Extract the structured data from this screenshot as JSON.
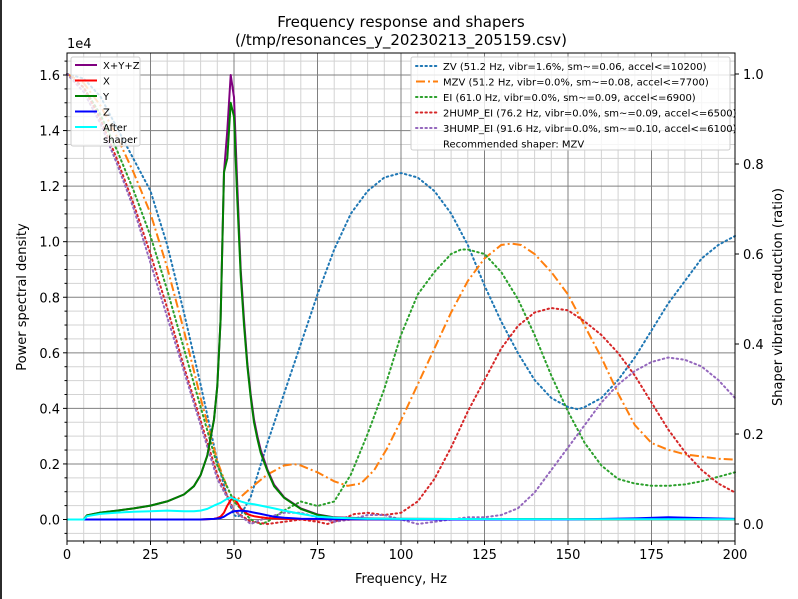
{
  "chart_data": {
    "type": "line",
    "title": "Frequency response and shapers",
    "subtitle": "(/tmp/resonances_y_20230213_205159.csv)",
    "xlabel": "Frequency, Hz",
    "ylabel": "Power spectral density",
    "y_offset_label": "1e4",
    "y2label": "Shaper vibration reduction (ratio)",
    "xlim": [
      0,
      200
    ],
    "ylim": [
      -0.08,
      1.68
    ],
    "y2lim": [
      -0.053,
      1.05
    ],
    "grid": true,
    "x_ticks": [
      0,
      25,
      50,
      75,
      100,
      125,
      150,
      175,
      200
    ],
    "x_tick_labels": [
      "0",
      "25",
      "50",
      "75",
      "100",
      "125",
      "150",
      "175",
      "200"
    ],
    "y_ticks": [
      0.0,
      0.2,
      0.4,
      0.6,
      0.8,
      1.0,
      1.2,
      1.4,
      1.6
    ],
    "y_tick_labels": [
      "0.0",
      "0.2",
      "0.4",
      "0.6",
      "0.8",
      "1.0",
      "1.2",
      "1.4",
      "1.6"
    ],
    "y2_ticks": [
      0.0,
      0.2,
      0.4,
      0.6,
      0.8,
      1.0
    ],
    "y2_tick_labels": [
      "0.0",
      "0.2",
      "0.4",
      "0.6",
      "0.8",
      "1.0"
    ],
    "legend_left": {
      "placement": "top-left",
      "entries": [
        "X+Y+Z",
        "X",
        "Y",
        "Z",
        "After\nshaper"
      ]
    },
    "legend_right": {
      "placement": "top-right",
      "entries": [
        "ZV (51.2 Hz, vibr=1.6%, sm~=0.06, accel<=10200)",
        "MZV (51.2 Hz, vibr=0.0%, sm~=0.08, accel<=7700)",
        "EI (61.0 Hz, vibr=0.0%, sm~=0.09, accel<=6900)",
        "2HUMP_EI (76.2 Hz, vibr=0.0%, sm~=0.09, accel<=6500)",
        "3HUMP_EI (91.6 Hz, vibr=0.0%, sm~=0.10, accel<=6100)"
      ],
      "note": "Recommended shaper: MZV"
    },
    "psd_series": [
      {
        "name": "X+Y+Z",
        "color": "#800080",
        "x": [
          0,
          5,
          6,
          10,
          15,
          20,
          25,
          30,
          35,
          38,
          40,
          42,
          44,
          45,
          46,
          47,
          48,
          49,
          50,
          51,
          52,
          53,
          54,
          55,
          56,
          57,
          58,
          60,
          62,
          65,
          70,
          75,
          80,
          90,
          100,
          150,
          200
        ],
        "y": [
          0,
          0,
          0.015,
          0.025,
          0.032,
          0.04,
          0.05,
          0.065,
          0.09,
          0.12,
          0.16,
          0.23,
          0.36,
          0.48,
          0.72,
          1.25,
          1.4,
          1.6,
          1.52,
          1.2,
          0.9,
          0.72,
          0.56,
          0.45,
          0.36,
          0.3,
          0.25,
          0.18,
          0.125,
          0.08,
          0.04,
          0.018,
          0.008,
          0.004,
          0.002,
          0.001,
          0.001
        ]
      },
      {
        "name": "X",
        "color": "#ff0000",
        "x": [
          0,
          40,
          44,
          45,
          46,
          47,
          48,
          49,
          50,
          51,
          52,
          53,
          54,
          55,
          56,
          58,
          60,
          65,
          70,
          80,
          100,
          150,
          200
        ],
        "y": [
          0,
          0,
          0.002,
          0.005,
          0.01,
          0.025,
          0.05,
          0.07,
          0.08,
          0.06,
          0.04,
          0.03,
          0.02,
          0.015,
          0.012,
          0.008,
          0.005,
          0.002,
          0.001,
          0,
          0,
          0,
          0
        ]
      },
      {
        "name": "Y",
        "color": "#008000",
        "x": [
          0,
          5,
          6,
          10,
          15,
          20,
          25,
          30,
          35,
          38,
          40,
          42,
          44,
          45,
          46,
          47,
          48,
          49,
          50,
          51,
          52,
          53,
          54,
          55,
          56,
          57,
          58,
          60,
          62,
          65,
          70,
          75,
          80,
          90,
          100,
          150,
          200
        ],
        "y": [
          0,
          0,
          0.015,
          0.025,
          0.032,
          0.04,
          0.05,
          0.065,
          0.09,
          0.12,
          0.16,
          0.23,
          0.36,
          0.48,
          0.72,
          1.25,
          1.3,
          1.5,
          1.45,
          1.15,
          0.88,
          0.7,
          0.55,
          0.44,
          0.35,
          0.29,
          0.24,
          0.175,
          0.12,
          0.078,
          0.038,
          0.017,
          0.007,
          0.003,
          0.002,
          0.001,
          0.001
        ]
      },
      {
        "name": "Z",
        "color": "#0000ff",
        "x": [
          0,
          40,
          44,
          46,
          47,
          48,
          49,
          50,
          52,
          54,
          56,
          58,
          60,
          62,
          65,
          70,
          75,
          80,
          100,
          150,
          170,
          180,
          190,
          200
        ],
        "y": [
          0,
          0,
          0.002,
          0.005,
          0.01,
          0.018,
          0.025,
          0.03,
          0.032,
          0.03,
          0.025,
          0.02,
          0.015,
          0.01,
          0.006,
          0.003,
          0.002,
          0.001,
          0,
          0,
          0.004,
          0.008,
          0.005,
          0.002
        ]
      },
      {
        "name": "After\nshaper",
        "color": "#00ffff",
        "x": [
          0,
          5,
          6,
          10,
          15,
          20,
          25,
          30,
          35,
          38,
          40,
          42,
          44,
          46,
          48,
          49,
          50,
          51,
          52,
          54,
          56,
          58,
          60,
          62,
          65,
          70,
          75,
          80,
          90,
          100,
          150,
          200
        ],
        "y": [
          0,
          0,
          0.012,
          0.02,
          0.025,
          0.028,
          0.03,
          0.032,
          0.03,
          0.03,
          0.032,
          0.038,
          0.05,
          0.06,
          0.075,
          0.08,
          0.075,
          0.07,
          0.065,
          0.058,
          0.055,
          0.05,
          0.045,
          0.04,
          0.032,
          0.02,
          0.01,
          0.006,
          0.003,
          0.002,
          0.001,
          0.001
        ]
      }
    ],
    "shaper_series": [
      {
        "name": "ZV",
        "color": "#1f77b4",
        "dash": "dotted",
        "x": [
          0,
          5,
          10,
          15,
          20,
          25,
          30,
          35,
          40,
          45,
          48,
          50,
          51,
          52,
          55,
          60,
          65,
          70,
          75,
          80,
          85,
          90,
          95,
          100,
          105,
          110,
          115,
          120,
          125,
          130,
          135,
          140,
          145,
          150,
          153,
          155,
          160,
          165,
          170,
          175,
          180,
          185,
          190,
          195,
          200
        ],
        "y": [
          1.0,
          0.99,
          0.95,
          0.88,
          0.81,
          0.74,
          0.62,
          0.47,
          0.31,
          0.14,
          0.06,
          0.02,
          0.016,
          0.02,
          0.06,
          0.18,
          0.29,
          0.4,
          0.51,
          0.61,
          0.69,
          0.74,
          0.77,
          0.78,
          0.77,
          0.74,
          0.69,
          0.62,
          0.53,
          0.45,
          0.38,
          0.32,
          0.28,
          0.26,
          0.255,
          0.26,
          0.28,
          0.32,
          0.37,
          0.43,
          0.49,
          0.54,
          0.59,
          0.62,
          0.64
        ]
      },
      {
        "name": "MZV",
        "color": "#ff7f0e",
        "dash": "dashdot",
        "x": [
          0,
          5,
          10,
          15,
          20,
          25,
          30,
          35,
          40,
          45,
          48,
          50,
          52,
          55,
          60,
          65,
          68,
          70,
          75,
          80,
          84,
          88,
          92,
          96,
          100,
          105,
          110,
          115,
          120,
          125,
          130,
          133,
          136,
          140,
          145,
          150,
          155,
          160,
          165,
          170,
          175,
          180,
          185,
          190,
          195,
          200
        ],
        "y": [
          1.0,
          0.98,
          0.93,
          0.86,
          0.78,
          0.69,
          0.57,
          0.43,
          0.28,
          0.14,
          0.08,
          0.05,
          0.06,
          0.08,
          0.11,
          0.13,
          0.133,
          0.13,
          0.115,
          0.095,
          0.085,
          0.09,
          0.12,
          0.17,
          0.23,
          0.31,
          0.39,
          0.47,
          0.54,
          0.59,
          0.62,
          0.623,
          0.62,
          0.6,
          0.56,
          0.51,
          0.44,
          0.37,
          0.29,
          0.22,
          0.18,
          0.165,
          0.155,
          0.15,
          0.145,
          0.143
        ]
      },
      {
        "name": "EI",
        "color": "#2ca02c",
        "dash": "dotted",
        "x": [
          0,
          5,
          10,
          15,
          20,
          25,
          30,
          35,
          40,
          45,
          50,
          55,
          58,
          60,
          62,
          65,
          70,
          75,
          80,
          85,
          90,
          95,
          100,
          105,
          110,
          115,
          118,
          120,
          125,
          130,
          135,
          140,
          145,
          150,
          155,
          160,
          165,
          170,
          175,
          180,
          185,
          190,
          195,
          200
        ],
        "y": [
          1.0,
          0.97,
          0.91,
          0.83,
          0.74,
          0.64,
          0.52,
          0.39,
          0.26,
          0.13,
          0.05,
          0.01,
          0.0,
          0.005,
          0.015,
          0.03,
          0.05,
          0.04,
          0.05,
          0.11,
          0.2,
          0.3,
          0.42,
          0.51,
          0.56,
          0.6,
          0.61,
          0.61,
          0.6,
          0.56,
          0.5,
          0.42,
          0.33,
          0.25,
          0.18,
          0.13,
          0.1,
          0.09,
          0.085,
          0.085,
          0.088,
          0.095,
          0.105,
          0.115
        ]
      },
      {
        "name": "2HUMP_EI",
        "color": "#d62728",
        "dash": "dotted",
        "x": [
          0,
          5,
          10,
          15,
          20,
          25,
          30,
          35,
          40,
          45,
          50,
          55,
          60,
          65,
          70,
          75,
          78,
          82,
          86,
          90,
          95,
          100,
          105,
          110,
          115,
          120,
          125,
          130,
          135,
          140,
          145,
          150,
          155,
          160,
          165,
          170,
          175,
          180,
          185,
          190,
          195,
          200
        ],
        "y": [
          1.0,
          0.97,
          0.9,
          0.81,
          0.71,
          0.6,
          0.48,
          0.35,
          0.23,
          0.11,
          0.03,
          0.005,
          0.0,
          0.005,
          0.01,
          0.005,
          0.0,
          0.01,
          0.022,
          0.025,
          0.02,
          0.025,
          0.05,
          0.1,
          0.17,
          0.25,
          0.32,
          0.39,
          0.44,
          0.47,
          0.48,
          0.475,
          0.45,
          0.42,
          0.38,
          0.33,
          0.27,
          0.21,
          0.16,
          0.12,
          0.09,
          0.07
        ]
      },
      {
        "name": "3HUMP_EI",
        "color": "#9467bd",
        "dash": "dotted",
        "x": [
          0,
          5,
          10,
          15,
          20,
          25,
          30,
          35,
          40,
          45,
          50,
          55,
          60,
          65,
          70,
          75,
          80,
          85,
          90,
          95,
          100,
          105,
          110,
          115,
          120,
          125,
          130,
          135,
          140,
          145,
          150,
          155,
          160,
          165,
          170,
          175,
          180,
          185,
          190,
          195,
          200
        ],
        "y": [
          1.0,
          0.96,
          0.89,
          0.8,
          0.7,
          0.58,
          0.46,
          0.34,
          0.22,
          0.1,
          0.03,
          0.0,
          0.015,
          0.025,
          0.025,
          0.015,
          0.005,
          0.01,
          0.02,
          0.02,
          0.01,
          0.0,
          0.005,
          0.01,
          0.015,
          0.015,
          0.02,
          0.035,
          0.07,
          0.12,
          0.17,
          0.22,
          0.27,
          0.31,
          0.34,
          0.36,
          0.37,
          0.365,
          0.35,
          0.32,
          0.28
        ]
      }
    ]
  }
}
